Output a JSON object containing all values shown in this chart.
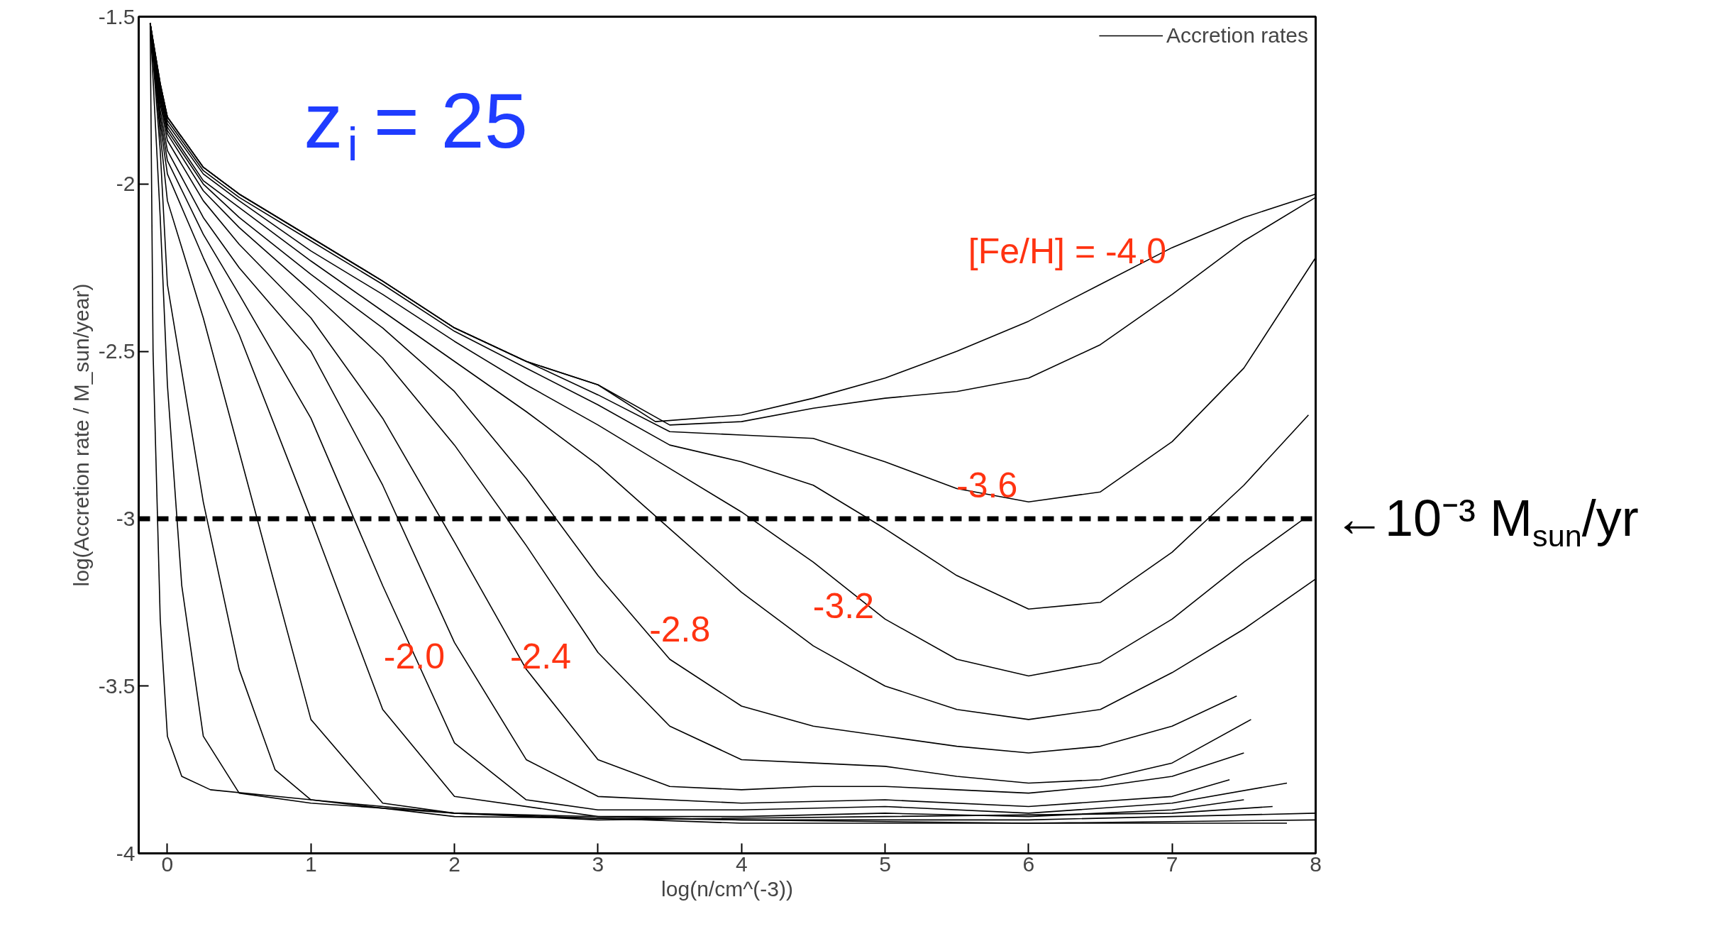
{
  "chart_data": {
    "type": "line",
    "xlabel": "log(n/cm^(-3))",
    "ylabel": "log(Accretion rate / M_sun/year)",
    "xlim": [
      -0.2,
      8
    ],
    "ylim": [
      -4,
      -1.5
    ],
    "xticks": [
      0,
      1,
      2,
      3,
      4,
      5,
      6,
      7,
      8
    ],
    "yticks": [
      -4,
      -3.5,
      -3,
      -2.5,
      -2,
      -1.5
    ],
    "legend": "top right",
    "line_style": "solid",
    "ref_lines": [
      {
        "axis": "y",
        "value": -3,
        "label": "←10⁻³ M$_{sun}$/yr",
        "color": "#000000",
        "line_style": "dashed"
      }
    ],
    "annotations": [
      "z$_{i}$ = 25",
      "[Fe/H] = -4.0",
      "-3.6",
      "-3.2",
      "-2.8",
      "-2.4",
      "-2.0"
    ],
    "series": [
      {
        "name": "Accretion rates",
        "color": "#000000",
        "x": [
          -0.12,
          -0.05,
          0,
          0.25,
          0.5,
          1,
          1.5,
          2,
          2.5,
          3,
          3.4,
          4,
          4.5,
          5,
          5.5,
          6,
          6.5,
          7,
          7.5,
          8
        ],
        "values": [
          -1.52,
          -1.7,
          -1.8,
          -1.95,
          -2.03,
          -2.16,
          -2.29,
          -2.43,
          -2.53,
          -2.6,
          -2.71,
          -2.69,
          -2.64,
          -2.58,
          -2.5,
          -2.41,
          -2.3,
          -2.19,
          -2.1,
          -2.03
        ]
      },
      {
        "color": "#000000",
        "x": [
          -0.12,
          -0.05,
          0,
          0.25,
          0.5,
          1,
          1.5,
          2,
          2.5,
          3,
          3.5,
          4,
          4.5,
          5,
          5.5,
          6,
          6.5,
          7,
          7.5,
          8
        ],
        "values": [
          -1.52,
          -1.7,
          -1.8,
          -1.95,
          -2.03,
          -2.16,
          -2.29,
          -2.43,
          -2.53,
          -2.6,
          -2.72,
          -2.71,
          -2.67,
          -2.64,
          -2.62,
          -2.58,
          -2.48,
          -2.33,
          -2.17,
          -2.04
        ]
      },
      {
        "color": "#000000",
        "x": [
          -0.12,
          -0.05,
          0,
          0.25,
          0.5,
          1,
          1.5,
          2,
          2.5,
          3,
          3.5,
          4,
          4.5,
          5,
          5.5,
          6,
          6.5,
          7,
          7.5,
          8
        ],
        "values": [
          -1.52,
          -1.7,
          -1.8,
          -1.95,
          -2.03,
          -2.16,
          -2.29,
          -2.43,
          -2.53,
          -2.63,
          -2.74,
          -2.75,
          -2.76,
          -2.83,
          -2.91,
          -2.95,
          -2.92,
          -2.77,
          -2.55,
          -2.22
        ]
      },
      {
        "color": "#000000",
        "x": [
          -0.12,
          -0.05,
          0,
          0.25,
          0.5,
          1,
          1.5,
          2,
          2.5,
          3,
          3.5,
          4,
          4.5,
          5,
          5.5,
          6,
          6.5,
          7,
          7.5,
          7.95
        ],
        "values": [
          -1.52,
          -1.71,
          -1.81,
          -1.96,
          -2.04,
          -2.17,
          -2.3,
          -2.44,
          -2.55,
          -2.66,
          -2.78,
          -2.83,
          -2.9,
          -3.03,
          -3.17,
          -3.27,
          -3.25,
          -3.1,
          -2.9,
          -2.69
        ]
      },
      {
        "color": "#000000",
        "x": [
          -0.12,
          -0.05,
          0,
          0.25,
          0.5,
          1,
          1.5,
          2,
          2.5,
          3,
          3.5,
          4,
          4.5,
          5,
          5.5,
          6,
          6.5,
          7,
          7.5,
          7.92
        ],
        "values": [
          -1.52,
          -1.72,
          -1.82,
          -1.97,
          -2.05,
          -2.2,
          -2.33,
          -2.47,
          -2.6,
          -2.72,
          -2.85,
          -2.98,
          -3.13,
          -3.3,
          -3.42,
          -3.47,
          -3.43,
          -3.3,
          -3.13,
          -3.0
        ]
      },
      {
        "color": "#000000",
        "x": [
          -0.12,
          -0.05,
          0,
          0.25,
          0.5,
          1,
          1.5,
          2,
          2.5,
          3,
          3.5,
          4,
          4.5,
          5,
          5.5,
          6,
          6.5,
          7,
          7.5,
          8
        ],
        "values": [
          -1.52,
          -1.73,
          -1.83,
          -1.99,
          -2.07,
          -2.23,
          -2.38,
          -2.53,
          -2.68,
          -2.84,
          -3.03,
          -3.22,
          -3.38,
          -3.5,
          -3.57,
          -3.6,
          -3.57,
          -3.46,
          -3.33,
          -3.18
        ]
      },
      {
        "color": "#000000",
        "x": [
          -0.12,
          -0.05,
          0,
          0.25,
          0.5,
          1,
          1.5,
          2,
          2.5,
          3,
          3.5,
          4,
          4.5,
          5,
          5.5,
          6,
          6.5,
          7,
          7.45
        ],
        "values": [
          -1.52,
          -1.74,
          -1.84,
          -2.0,
          -2.1,
          -2.27,
          -2.43,
          -2.62,
          -2.88,
          -3.17,
          -3.42,
          -3.56,
          -3.62,
          -3.65,
          -3.68,
          -3.7,
          -3.68,
          -3.62,
          -3.53
        ]
      },
      {
        "color": "#000000",
        "x": [
          -0.12,
          -0.05,
          0,
          0.25,
          0.5,
          1,
          1.5,
          2,
          2.5,
          3,
          3.5,
          4,
          4.5,
          5,
          5.5,
          6,
          6.5,
          7,
          7.55
        ],
        "values": [
          -1.52,
          -1.75,
          -1.85,
          -2.02,
          -2.13,
          -2.32,
          -2.52,
          -2.78,
          -3.08,
          -3.4,
          -3.62,
          -3.72,
          -3.73,
          -3.74,
          -3.77,
          -3.79,
          -3.78,
          -3.73,
          -3.6
        ]
      },
      {
        "color": "#000000",
        "x": [
          -0.12,
          -0.05,
          0,
          0.25,
          0.5,
          1,
          1.5,
          2,
          2.5,
          3,
          3.5,
          4,
          4.5,
          5,
          5.5,
          6,
          6.5,
          7,
          7.5
        ],
        "values": [
          -1.52,
          -1.76,
          -1.87,
          -2.05,
          -2.18,
          -2.4,
          -2.7,
          -3.07,
          -3.45,
          -3.72,
          -3.8,
          -3.81,
          -3.8,
          -3.8,
          -3.81,
          -3.82,
          -3.8,
          -3.77,
          -3.7
        ]
      },
      {
        "color": "#000000",
        "x": [
          -0.12,
          -0.05,
          0,
          0.25,
          0.5,
          1,
          1.5,
          2,
          2.5,
          3,
          4,
          5,
          6,
          7,
          7.4
        ],
        "values": [
          -1.52,
          -1.78,
          -1.9,
          -2.1,
          -2.25,
          -2.5,
          -2.9,
          -3.37,
          -3.72,
          -3.83,
          -3.85,
          -3.84,
          -3.86,
          -3.83,
          -3.78
        ]
      },
      {
        "color": "#000000",
        "x": [
          -0.12,
          -0.05,
          0,
          0.25,
          0.5,
          1,
          1.5,
          2,
          2.5,
          3,
          4,
          5,
          6,
          7,
          7.8
        ],
        "values": [
          -1.52,
          -1.8,
          -1.93,
          -2.15,
          -2.33,
          -2.7,
          -3.2,
          -3.67,
          -3.84,
          -3.87,
          -3.87,
          -3.86,
          -3.88,
          -3.85,
          -3.79
        ]
      },
      {
        "color": "#000000",
        "x": [
          -0.12,
          -0.05,
          0,
          0.25,
          0.5,
          1,
          1.5,
          2,
          3,
          4,
          5,
          6,
          7,
          7.5
        ],
        "values": [
          -1.52,
          -1.82,
          -1.97,
          -2.22,
          -2.45,
          -3.0,
          -3.57,
          -3.83,
          -3.89,
          -3.89,
          -3.88,
          -3.89,
          -3.87,
          -3.84
        ]
      },
      {
        "color": "#000000",
        "x": [
          -0.12,
          -0.05,
          0,
          0.25,
          0.5,
          1,
          1.5,
          2,
          3,
          5,
          7,
          7.7
        ],
        "values": [
          -1.52,
          -1.85,
          -2.05,
          -2.4,
          -2.8,
          -3.6,
          -3.85,
          -3.88,
          -3.9,
          -3.89,
          -3.88,
          -3.86
        ]
      },
      {
        "color": "#000000",
        "x": [
          -0.12,
          -0.05,
          0,
          0.25,
          0.5,
          0.75,
          1,
          2,
          4,
          6,
          8
        ],
        "values": [
          -1.52,
          -1.9,
          -2.3,
          -2.95,
          -3.45,
          -3.75,
          -3.84,
          -3.89,
          -3.9,
          -3.9,
          -3.88
        ]
      },
      {
        "color": "#000000",
        "x": [
          -0.12,
          -0.05,
          0,
          0.1,
          0.25,
          0.5,
          1,
          2,
          4,
          6,
          8
        ],
        "values": [
          -1.52,
          -2.1,
          -2.6,
          -3.2,
          -3.65,
          -3.82,
          -3.85,
          -3.88,
          -3.91,
          -3.91,
          -3.9
        ]
      },
      {
        "color": "#000000",
        "x": [
          -0.12,
          -0.1,
          -0.05,
          0,
          0.1,
          0.3,
          1,
          2,
          4,
          6,
          7.8
        ],
        "values": [
          -1.52,
          -2.5,
          -3.3,
          -3.65,
          -3.77,
          -3.81,
          -3.84,
          -3.88,
          -3.9,
          -3.91,
          -3.91
        ]
      }
    ]
  }
}
